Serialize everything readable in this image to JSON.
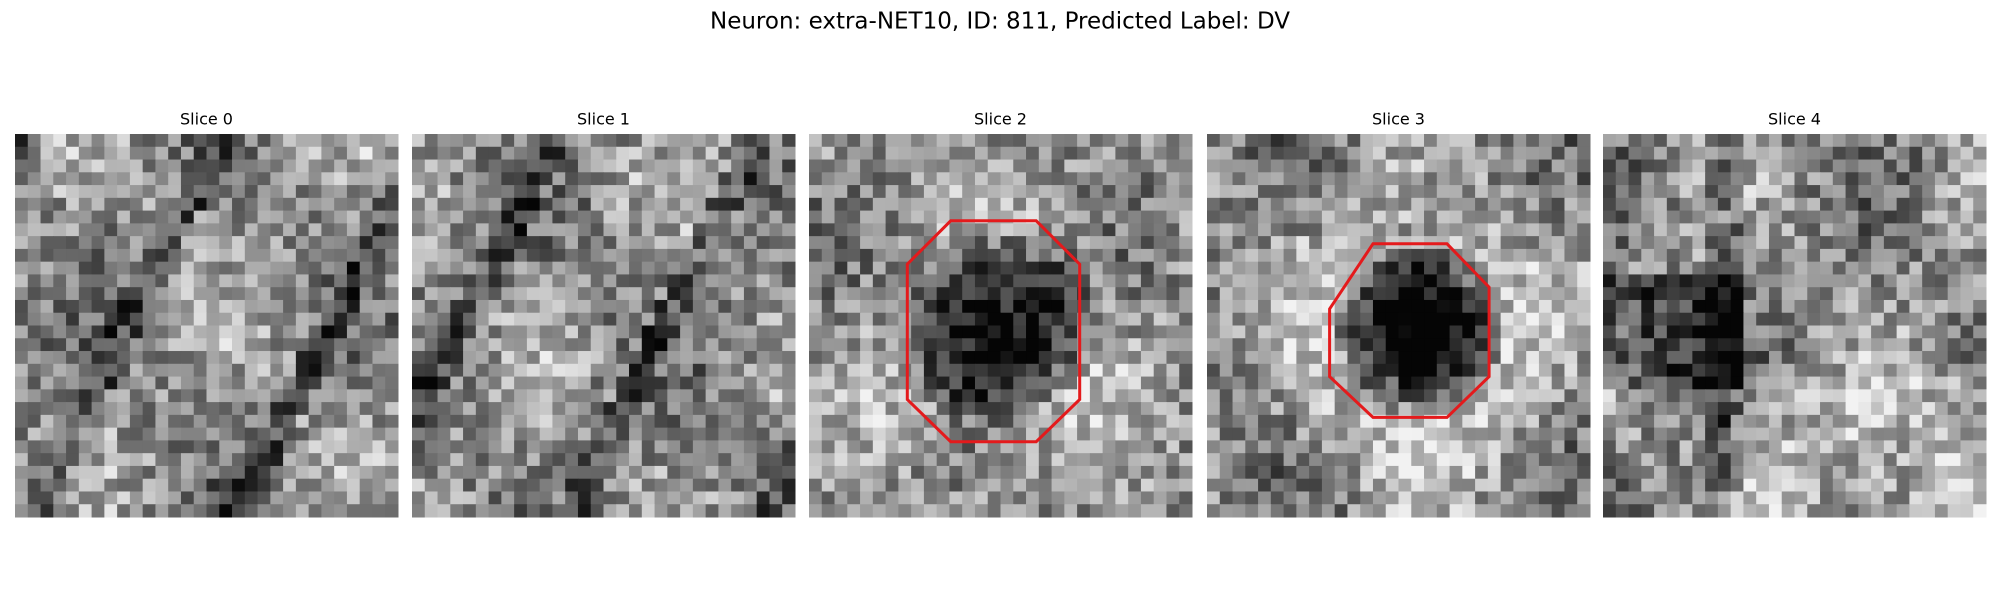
{
  "title": "Neuron: extra-NET10, ID: 811, Predicted Label: DV",
  "panels": [
    {
      "title": "Slice 0"
    },
    {
      "title": "Slice 1"
    },
    {
      "title": "Slice 2"
    },
    {
      "title": "Slice 3"
    },
    {
      "title": "Slice 4"
    }
  ]
}
